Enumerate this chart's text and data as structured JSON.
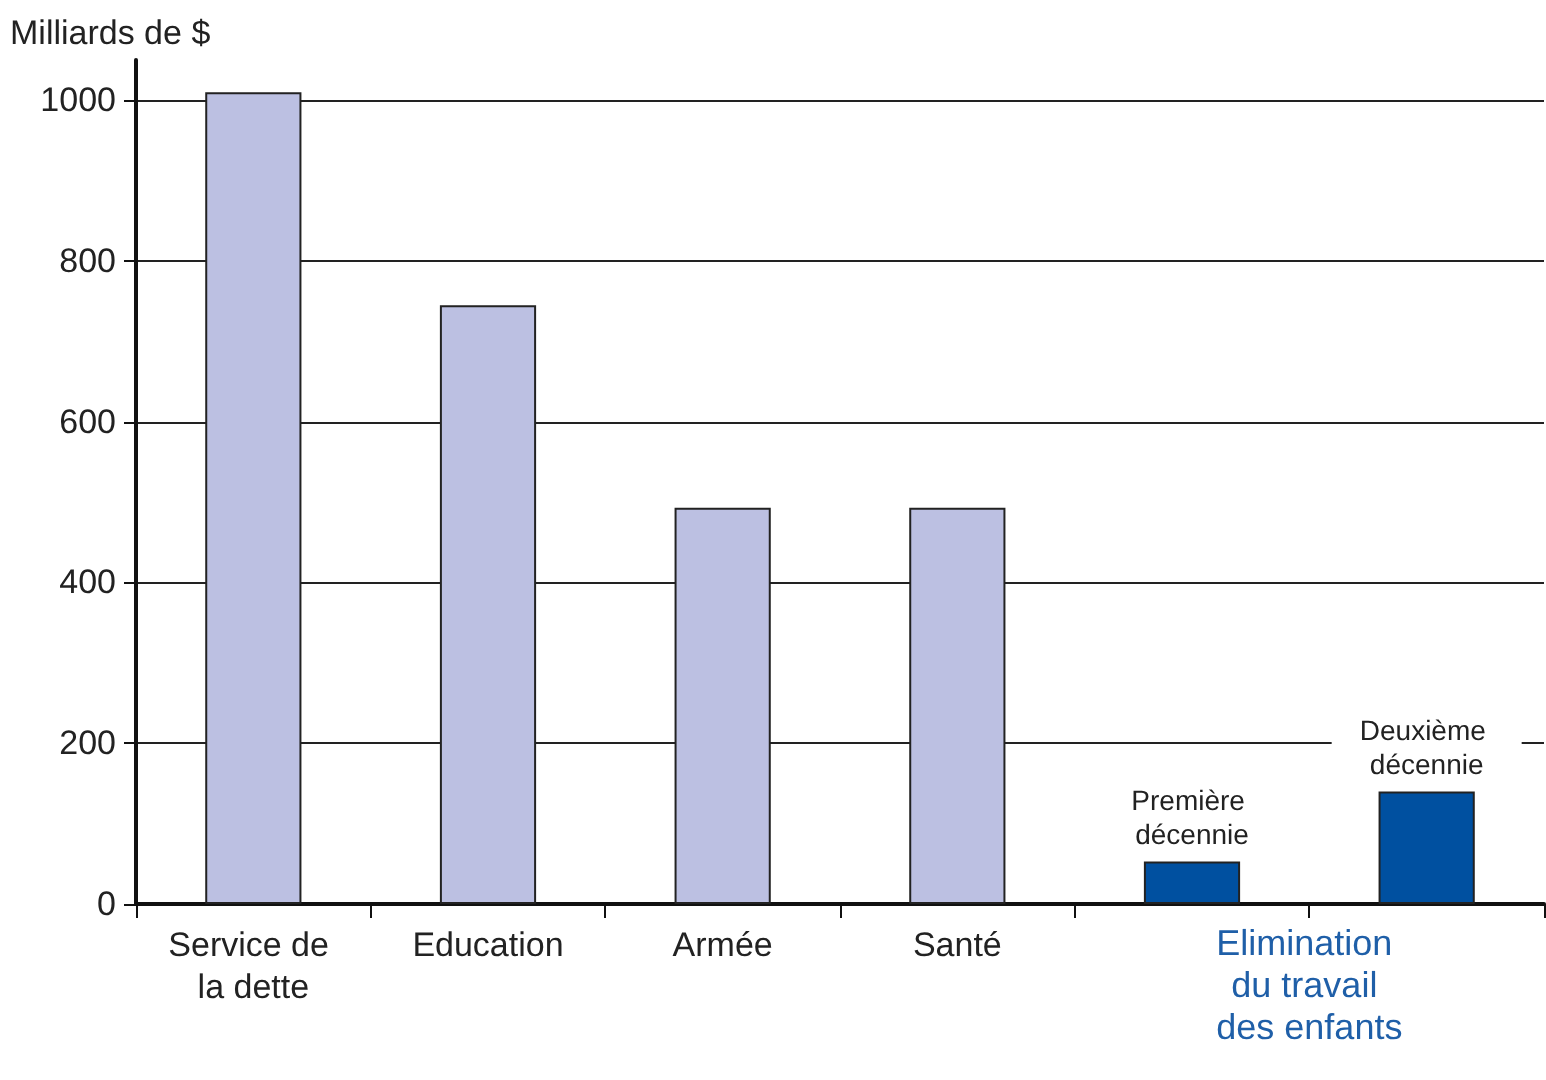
{
  "chart_data": {
    "type": "bar",
    "ylabel": "Milliards de $",
    "categories": [
      "Service de la dette",
      "Education",
      "Armée",
      "Santé",
      "Première décennie",
      "Deuxième décennie"
    ],
    "values": [
      1010,
      745,
      493,
      493,
      53,
      140
    ],
    "colors": [
      "#bcc0e2",
      "#bcc0e2",
      "#bcc0e2",
      "#bcc0e2",
      "#0050a0",
      "#0050a0"
    ],
    "ylim": [
      0,
      1050
    ],
    "yticks": [
      0,
      200,
      400,
      600,
      800,
      1000
    ],
    "grid": "y",
    "annotations": [
      "Elimination du travail des enfants"
    ]
  }
}
